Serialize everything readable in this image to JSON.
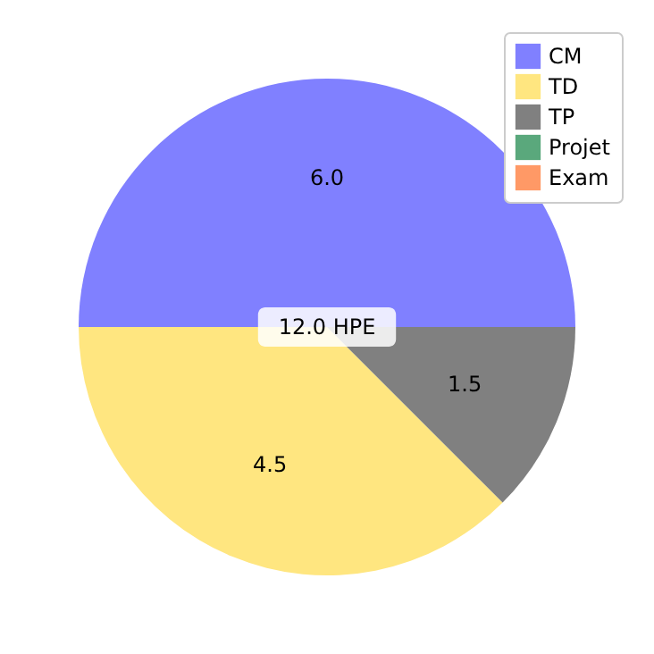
{
  "chart_data": {
    "type": "pie",
    "categories": [
      "CM",
      "TD",
      "TP",
      "Projet",
      "Exam"
    ],
    "values": [
      6.0,
      4.5,
      1.5,
      0,
      0
    ],
    "colors": [
      "#8080ff",
      "#ffe680",
      "#808080",
      "#5aa87c",
      "#ff9966"
    ],
    "value_labels": [
      "6.0",
      "4.5",
      "1.5",
      null,
      null
    ],
    "annotations": [
      "12.0 HPE"
    ],
    "legend": "top right"
  }
}
